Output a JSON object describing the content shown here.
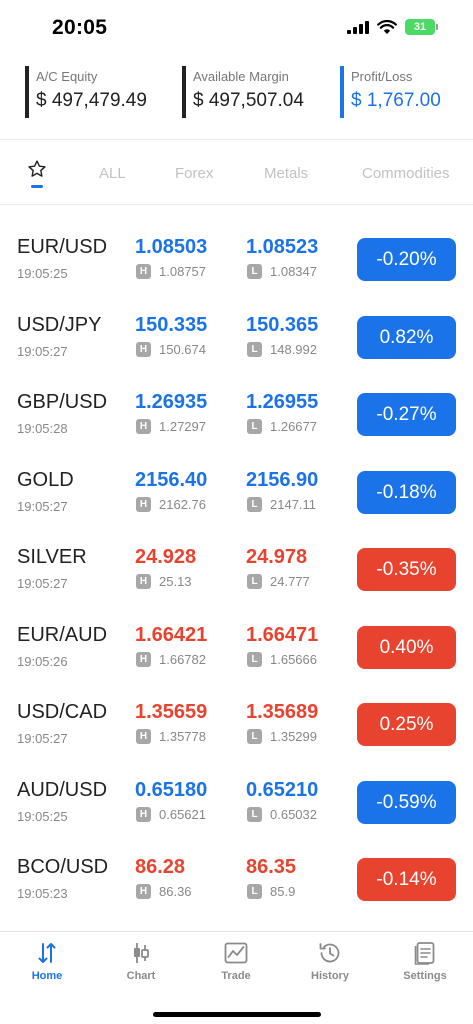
{
  "status_bar": {
    "time": "20:05",
    "battery": "31"
  },
  "summary": {
    "equity": {
      "label": "A/C Equity",
      "value": "$ 497,479.49"
    },
    "margin": {
      "label": "Available Margin",
      "value": "$ 497,507.04"
    },
    "profit_loss": {
      "label": "Profit/Loss",
      "value": "$ 1,767.00"
    }
  },
  "tabs": {
    "favorites_icon": "star-icon",
    "items": [
      {
        "label": "ALL"
      },
      {
        "label": "Forex"
      },
      {
        "label": "Metals"
      },
      {
        "label": "Commodities"
      }
    ]
  },
  "colors": {
    "up": "#1a73e8",
    "down": "#e8432f"
  },
  "quotes": [
    {
      "symbol": "EUR/USD",
      "time": "19:05:25",
      "bid": "1.08503",
      "ask": "1.08523",
      "high_tag": "H",
      "high": "1.08757",
      "low_tag": "L",
      "low": "1.08347",
      "change": "-0.20%",
      "color": "#1a73e8"
    },
    {
      "symbol": "USD/JPY",
      "time": "19:05:27",
      "bid": "150.335",
      "ask": "150.365",
      "high_tag": "H",
      "high": "150.674",
      "low_tag": "L",
      "low": "148.992",
      "change": "0.82%",
      "color": "#1a73e8"
    },
    {
      "symbol": "GBP/USD",
      "time": "19:05:28",
      "bid": "1.26935",
      "ask": "1.26955",
      "high_tag": "H",
      "high": "1.27297",
      "low_tag": "L",
      "low": "1.26677",
      "change": "-0.27%",
      "color": "#1a73e8"
    },
    {
      "symbol": "GOLD",
      "time": "19:05:27",
      "bid": "2156.40",
      "ask": "2156.90",
      "high_tag": "H",
      "high": "2162.76",
      "low_tag": "L",
      "low": "2147.11",
      "change": "-0.18%",
      "color": "#1a73e8"
    },
    {
      "symbol": "SILVER",
      "time": "19:05:27",
      "bid": "24.928",
      "ask": "24.978",
      "high_tag": "H",
      "high": "25.13",
      "low_tag": "L",
      "low": "24.777",
      "change": "-0.35%",
      "color": "#e8432f"
    },
    {
      "symbol": "EUR/AUD",
      "time": "19:05:26",
      "bid": "1.66421",
      "ask": "1.66471",
      "high_tag": "H",
      "high": "1.66782",
      "low_tag": "L",
      "low": "1.65666",
      "change": "0.40%",
      "color": "#e8432f"
    },
    {
      "symbol": "USD/CAD",
      "time": "19:05:27",
      "bid": "1.35659",
      "ask": "1.35689",
      "high_tag": "H",
      "high": "1.35778",
      "low_tag": "L",
      "low": "1.35299",
      "change": "0.25%",
      "color": "#e8432f"
    },
    {
      "symbol": "AUD/USD",
      "time": "19:05:25",
      "bid": "0.65180",
      "ask": "0.65210",
      "high_tag": "H",
      "high": "0.65621",
      "low_tag": "L",
      "low": "0.65032",
      "change": "-0.59%",
      "color": "#1a73e8"
    },
    {
      "symbol": "BCO/USD",
      "time": "19:05:23",
      "bid": "86.28",
      "ask": "86.35",
      "high_tag": "H",
      "high": "86.36",
      "low_tag": "L",
      "low": "85.9",
      "change": "-0.14%",
      "color": "#e8432f"
    }
  ],
  "bottom_nav": [
    {
      "label": "Home",
      "icon": "home-sort-icon",
      "active": true
    },
    {
      "label": "Chart",
      "icon": "candlestick-icon",
      "active": false
    },
    {
      "label": "Trade",
      "icon": "trade-chart-icon",
      "active": false
    },
    {
      "label": "History",
      "icon": "history-icon",
      "active": false
    },
    {
      "label": "Settings",
      "icon": "settings-list-icon",
      "active": false
    }
  ]
}
